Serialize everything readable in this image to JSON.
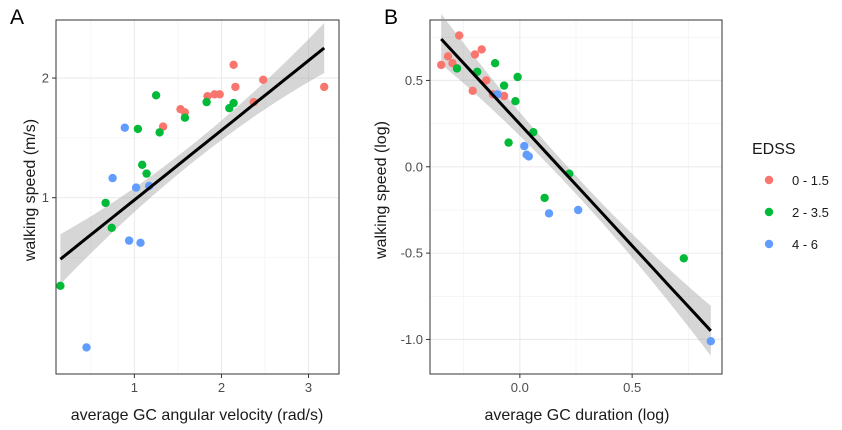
{
  "legend": {
    "title": "EDSS",
    "items": [
      {
        "label": "0 - 1.5",
        "color": "#F8766D"
      },
      {
        "label": "2 - 3.5",
        "color": "#00BA38"
      },
      {
        "label": "4 - 6",
        "color": "#619CFF"
      }
    ],
    "placement": "right"
  },
  "chart_data": [
    {
      "type": "scatter",
      "panel_label": "A",
      "xlabel": "average GC angular velocity (rad/s)",
      "ylabel": "walking speed (m/s)",
      "x_scale": "linear",
      "y_scale": "log",
      "xlim": [
        0.1,
        3.35
      ],
      "ylim": [
        0.36,
        2.8
      ],
      "x_ticks": [
        1,
        2,
        3
      ],
      "y_ticks": [
        1,
        2
      ],
      "grid": true,
      "series": [
        {
          "name": "0 - 1.5",
          "color": "#F8766D",
          "points": [
            [
              1.33,
              1.51
            ],
            [
              1.53,
              1.67
            ],
            [
              1.58,
              1.64
            ],
            [
              1.84,
              1.8
            ],
            [
              1.92,
              1.82
            ],
            [
              1.98,
              1.82
            ],
            [
              2.14,
              2.16
            ],
            [
              2.16,
              1.9
            ],
            [
              2.37,
              1.74
            ],
            [
              2.48,
              1.98
            ],
            [
              3.18,
              1.9
            ]
          ]
        },
        {
          "name": "2 - 3.5",
          "color": "#00BA38",
          "points": [
            [
              0.15,
              0.6
            ],
            [
              0.67,
              0.97
            ],
            [
              0.74,
              0.84
            ],
            [
              1.04,
              1.49
            ],
            [
              1.09,
              1.21
            ],
            [
              1.14,
              1.15
            ],
            [
              1.25,
              1.81
            ],
            [
              1.29,
              1.46
            ],
            [
              1.58,
              1.59
            ],
            [
              1.83,
              1.74
            ],
            [
              2.09,
              1.68
            ],
            [
              2.14,
              1.73
            ]
          ]
        },
        {
          "name": "4 - 6",
          "color": "#619CFF",
          "points": [
            [
              0.45,
              0.42
            ],
            [
              0.75,
              1.12
            ],
            [
              0.89,
              1.5
            ],
            [
              0.94,
              0.78
            ],
            [
              1.02,
              1.06
            ],
            [
              1.07,
              0.77
            ],
            [
              1.17,
              1.07
            ]
          ]
        }
      ],
      "fit": {
        "x": [
          0.15,
          3.18
        ],
        "y": [
          0.7,
          2.38
        ]
      }
    },
    {
      "type": "scatter",
      "panel_label": "B",
      "xlabel": "average GC duration (log)",
      "ylabel": "walking speed (log)",
      "x_scale": "linear",
      "y_scale": "linear",
      "xlim": [
        -0.4,
        0.9
      ],
      "ylim": [
        -1.2,
        0.85
      ],
      "x_ticks": [
        0.0,
        0.5
      ],
      "x_tick_labels": [
        "0.0",
        "0.5"
      ],
      "y_ticks": [
        -1.0,
        -0.5,
        0.0,
        0.5
      ],
      "y_tick_labels": [
        "-1.0",
        "-0.5",
        "0.0",
        "0.5"
      ],
      "grid": true,
      "series": [
        {
          "name": "0 - 1.5",
          "color": "#F8766D",
          "points": [
            [
              -0.35,
              0.59
            ],
            [
              -0.32,
              0.64
            ],
            [
              -0.3,
              0.6
            ],
            [
              -0.28,
              0.57
            ],
            [
              -0.27,
              0.76
            ],
            [
              -0.21,
              0.44
            ],
            [
              -0.2,
              0.65
            ],
            [
              -0.17,
              0.68
            ],
            [
              -0.15,
              0.5
            ],
            [
              -0.12,
              0.42
            ],
            [
              -0.07,
              0.41
            ]
          ]
        },
        {
          "name": "2 - 3.5",
          "color": "#00BA38",
          "points": [
            [
              -0.28,
              0.57
            ],
            [
              -0.19,
              0.55
            ],
            [
              -0.11,
              0.6
            ],
            [
              -0.07,
              0.47
            ],
            [
              -0.05,
              0.14
            ],
            [
              -0.02,
              0.38
            ],
            [
              -0.01,
              0.52
            ],
            [
              0.06,
              0.2
            ],
            [
              0.11,
              -0.18
            ],
            [
              0.22,
              -0.04
            ],
            [
              0.73,
              -0.53
            ]
          ]
        },
        {
          "name": "4 - 6",
          "color": "#619CFF",
          "points": [
            [
              -0.1,
              0.42
            ],
            [
              0.02,
              0.12
            ],
            [
              0.03,
              0.07
            ],
            [
              0.04,
              0.06
            ],
            [
              0.13,
              -0.27
            ],
            [
              0.26,
              -0.25
            ],
            [
              0.85,
              -1.01
            ]
          ]
        }
      ],
      "fit": {
        "x": [
          -0.35,
          0.85
        ],
        "y": [
          0.74,
          -0.95
        ]
      }
    }
  ]
}
